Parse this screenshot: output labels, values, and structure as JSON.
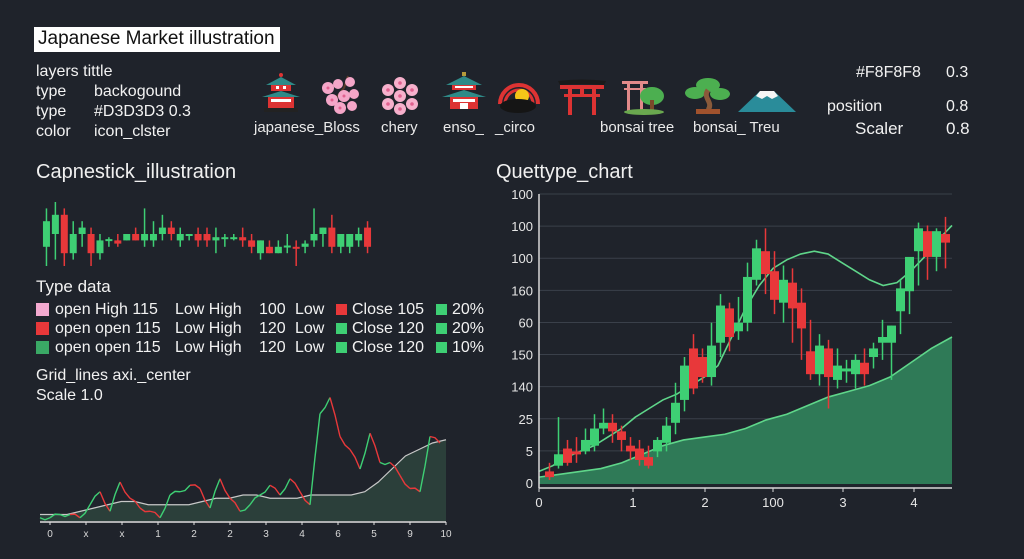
{
  "header": {
    "title": "Japanese Market illustration",
    "layers_title": "layers tittle",
    "meta_rows": [
      {
        "key": "type",
        "value": "backogound"
      },
      {
        "key": "type",
        "value": "#D3D3D3 0.3"
      },
      {
        "key": "color",
        "value": "icon_clster"
      }
    ]
  },
  "icon_cluster": {
    "icons": [
      {
        "name": "pagoda",
        "glyph": "pagoda"
      },
      {
        "name": "cherry-blossom-branch",
        "glyph": "blossom"
      },
      {
        "name": "cherry-blossoms",
        "glyph": "blossom"
      },
      {
        "name": "pagoda-2",
        "glyph": "pagoda"
      },
      {
        "name": "enso-sun",
        "glyph": "enso"
      },
      {
        "name": "torii-gate",
        "glyph": "torii"
      },
      {
        "name": "torii-bonsai",
        "glyph": "torii-tree"
      },
      {
        "name": "bonsai",
        "glyph": "bonsai"
      },
      {
        "name": "mount-fuji",
        "glyph": "fuji"
      }
    ],
    "labels": [
      "japanese_Bloss",
      "chery",
      "enso_",
      "_circo",
      "bonsai tree",
      "bonsai_ Treu"
    ]
  },
  "right_meta": {
    "color_value": "#F8F8F8",
    "color_opacity": "0.3",
    "position_label": "position",
    "position_value": "0.8",
    "scaler_label": "Scaler",
    "scaler_value": "0.8"
  },
  "left_section": {
    "title": "Capnestick_illustration",
    "type_data_title": "Type data",
    "legend_rows": [
      {
        "swatch": "#f3a9cf",
        "open": "open High 115",
        "low_high": "Low High",
        "lh_value": "100",
        "low": "Low",
        "close_swatch": "#e8383a",
        "close": "Close 105",
        "pct_swatch": "#3ecf74",
        "pct": "20%"
      },
      {
        "swatch": "#e8383a",
        "open": "open open 115",
        "low_high": "Low High",
        "lh_value": "120",
        "low": "Low",
        "close_swatch": "#3ecf74",
        "close": "Close 120",
        "pct_swatch": "#3ecf74",
        "pct": "20%"
      },
      {
        "swatch": "#3aa865",
        "open": "open open 115",
        "low_high": "Low High",
        "lh_value": "120",
        "low": "Low",
        "close_swatch": "#3ecf74",
        "close": "Close 120",
        "pct_swatch": "#3ecf74",
        "pct": "10%"
      }
    ],
    "grid_label": "Grid_lines axi._center",
    "scale_label": "Scale 1.0"
  },
  "right_section": {
    "title": "Quettype_chart"
  },
  "colors": {
    "background": "#1f232b",
    "up": "#3ecf74",
    "down": "#e8383a",
    "area": "#2f7a57",
    "ma_line": "#5fd68a",
    "grid": "#3a404a",
    "axis": "#d8d8d8"
  },
  "chart_data": [
    {
      "type": "candlestick",
      "title": "Capnestick_illustration",
      "note": "mini strip of 37 candles, no axes",
      "candles": [
        {
          "o": 3,
          "h": 9,
          "l": 0,
          "c": 7
        },
        {
          "o": 5,
          "h": 10,
          "l": 1,
          "c": 8
        },
        {
          "o": 8,
          "h": 9,
          "l": 0,
          "c": 2
        },
        {
          "o": 2,
          "h": 7,
          "l": 1,
          "c": 5
        },
        {
          "o": 5,
          "h": 7,
          "l": 3,
          "c": 6
        },
        {
          "o": 5,
          "h": 6,
          "l": 0,
          "c": 2
        },
        {
          "o": 2,
          "h": 5,
          "l": 1,
          "c": 4
        },
        {
          "o": 4,
          "h": 4.5,
          "l": 3,
          "c": 4.2
        },
        {
          "o": 4,
          "h": 5,
          "l": 3,
          "c": 3.5
        },
        {
          "o": 4,
          "h": 5,
          "l": 4,
          "c": 5
        },
        {
          "o": 5,
          "h": 6,
          "l": 4,
          "c": 4
        },
        {
          "o": 4,
          "h": 9,
          "l": 3,
          "c": 5
        },
        {
          "o": 4,
          "h": 7,
          "l": 3,
          "c": 5
        },
        {
          "o": 5,
          "h": 8,
          "l": 4,
          "c": 6
        },
        {
          "o": 6,
          "h": 7,
          "l": 4,
          "c": 5
        },
        {
          "o": 4,
          "h": 6,
          "l": 3,
          "c": 5
        },
        {
          "o": 5,
          "h": 5,
          "l": 4,
          "c": 5
        },
        {
          "o": 5,
          "h": 6,
          "l": 3,
          "c": 4
        },
        {
          "o": 5,
          "h": 6,
          "l": 3,
          "c": 4
        },
        {
          "o": 4,
          "h": 6,
          "l": 2,
          "c": 4.5
        },
        {
          "o": 4.5,
          "h": 5,
          "l": 3,
          "c": 4.5
        },
        {
          "o": 4.5,
          "h": 5,
          "l": 4,
          "c": 4.5
        },
        {
          "o": 4.5,
          "h": 6,
          "l": 3,
          "c": 4
        },
        {
          "o": 4,
          "h": 5,
          "l": 2,
          "c": 3
        },
        {
          "o": 2,
          "h": 4,
          "l": 1,
          "c": 4
        },
        {
          "o": 3,
          "h": 4,
          "l": 2,
          "c": 2
        },
        {
          "o": 2,
          "h": 4,
          "l": 2,
          "c": 3
        },
        {
          "o": 3,
          "h": 5,
          "l": 2,
          "c": 3.2
        },
        {
          "o": 3,
          "h": 4,
          "l": 0,
          "c": 2.8
        },
        {
          "o": 3,
          "h": 4,
          "l": 2,
          "c": 3.5
        },
        {
          "o": 4,
          "h": 9,
          "l": 3,
          "c": 5
        },
        {
          "o": 5,
          "h": 6,
          "l": 3,
          "c": 6
        },
        {
          "o": 6,
          "h": 8,
          "l": 2,
          "c": 3
        },
        {
          "o": 3,
          "h": 5,
          "l": 2,
          "c": 5
        },
        {
          "o": 3,
          "h": 5,
          "l": 2,
          "c": 5
        },
        {
          "o": 4,
          "h": 6,
          "l": 3,
          "c": 5
        },
        {
          "o": 6,
          "h": 7,
          "l": 2,
          "c": 3
        }
      ]
    },
    {
      "type": "line",
      "title": "Grid_lines axi._center",
      "x_tick_labels": [
        "0",
        "x",
        "x",
        "1",
        "2",
        "2",
        "3",
        "4",
        "6",
        "5",
        "9",
        "10"
      ],
      "series": [
        {
          "name": "price",
          "values": [
            1,
            1,
            2,
            2,
            1,
            5,
            9,
            3,
            12,
            7,
            4,
            3,
            1,
            8,
            9,
            11,
            10,
            4,
            13,
            7,
            3,
            5,
            8,
            11,
            8,
            13,
            9,
            5,
            33,
            38,
            26,
            22,
            16,
            27,
            18,
            18,
            14,
            10,
            9,
            26,
            24
          ]
        },
        {
          "name": "moving_average",
          "values": [
            2,
            2,
            2,
            3,
            4,
            5,
            6,
            6,
            5,
            5,
            5,
            5,
            6,
            7,
            7,
            8,
            8,
            7,
            7,
            7,
            8,
            8,
            8,
            8,
            9,
            12,
            16,
            20,
            22,
            24,
            25
          ]
        }
      ],
      "fill": "area under moving average"
    },
    {
      "type": "candlestick",
      "title": "Quettype_chart",
      "y_tick_labels": [
        "100",
        "100",
        "100",
        "160",
        "60",
        "150",
        "140",
        "25",
        "5",
        "0"
      ],
      "x_tick_labels": [
        "0",
        "1",
        "2",
        "100",
        "3",
        "4"
      ],
      "grid": true,
      "candles": [
        {
          "o": 0.3,
          "h": 0.6,
          "l": 0,
          "c": 0.1
        },
        {
          "o": 0.5,
          "h": 2.2,
          "l": 0.4,
          "c": 0.9
        },
        {
          "o": 1.1,
          "h": 1.4,
          "l": 0.5,
          "c": 0.6
        },
        {
          "o": 1.0,
          "h": 1.5,
          "l": 0.6,
          "c": 0.9
        },
        {
          "o": 1.0,
          "h": 1.8,
          "l": 0.9,
          "c": 1.4
        },
        {
          "o": 1.2,
          "h": 2.3,
          "l": 1.0,
          "c": 1.8
        },
        {
          "o": 1.8,
          "h": 2.5,
          "l": 1.6,
          "c": 2.0
        },
        {
          "o": 2.0,
          "h": 2.3,
          "l": 1.3,
          "c": 1.7
        },
        {
          "o": 1.7,
          "h": 1.9,
          "l": 1.0,
          "c": 1.4
        },
        {
          "o": 1.2,
          "h": 1.5,
          "l": 0.7,
          "c": 1.0
        },
        {
          "o": 1.1,
          "h": 1.4,
          "l": 0.5,
          "c": 0.7
        },
        {
          "o": 0.8,
          "h": 1.2,
          "l": 0.4,
          "c": 0.5
        },
        {
          "o": 1.0,
          "h": 1.5,
          "l": 0.8,
          "c": 1.4
        },
        {
          "o": 1.3,
          "h": 2.2,
          "l": 1.0,
          "c": 1.9
        },
        {
          "o": 2.0,
          "h": 3.4,
          "l": 1.6,
          "c": 2.7
        },
        {
          "o": 2.8,
          "h": 4.3,
          "l": 2.4,
          "c": 4.0
        },
        {
          "o": 4.6,
          "h": 5.1,
          "l": 3.0,
          "c": 3.2
        },
        {
          "o": 4.3,
          "h": 4.6,
          "l": 3.4,
          "c": 3.6
        },
        {
          "o": 3.6,
          "h": 5.5,
          "l": 3.3,
          "c": 4.7
        },
        {
          "o": 4.8,
          "h": 6.5,
          "l": 4.3,
          "c": 6.1
        },
        {
          "o": 6.0,
          "h": 6.2,
          "l": 4.5,
          "c": 5.0
        },
        {
          "o": 5.2,
          "h": 6.4,
          "l": 4.9,
          "c": 5.5
        },
        {
          "o": 5.5,
          "h": 7.6,
          "l": 5.2,
          "c": 7.1
        },
        {
          "o": 7.0,
          "h": 8.4,
          "l": 6.8,
          "c": 8.1
        },
        {
          "o": 8.0,
          "h": 8.8,
          "l": 6.5,
          "c": 7.2
        },
        {
          "o": 7.3,
          "h": 8.0,
          "l": 5.8,
          "c": 6.3
        },
        {
          "o": 6.2,
          "h": 7.5,
          "l": 5.5,
          "c": 7.0
        },
        {
          "o": 6.9,
          "h": 7.4,
          "l": 4.8,
          "c": 6.0
        },
        {
          "o": 6.2,
          "h": 6.7,
          "l": 4.2,
          "c": 5.3
        },
        {
          "o": 4.5,
          "h": 5.6,
          "l": 3.5,
          "c": 3.7
        },
        {
          "o": 3.7,
          "h": 5.1,
          "l": 3.3,
          "c": 4.7
        },
        {
          "o": 4.6,
          "h": 4.9,
          "l": 2.5,
          "c": 3.6
        },
        {
          "o": 3.5,
          "h": 4.6,
          "l": 3.2,
          "c": 4.0
        },
        {
          "o": 3.8,
          "h": 4.2,
          "l": 3.4,
          "c": 3.9
        },
        {
          "o": 3.7,
          "h": 4.4,
          "l": 3.2,
          "c": 4.2
        },
        {
          "o": 4.1,
          "h": 4.6,
          "l": 3.3,
          "c": 3.7
        },
        {
          "o": 4.3,
          "h": 4.8,
          "l": 3.9,
          "c": 4.6
        },
        {
          "o": 4.8,
          "h": 5.6,
          "l": 4.2,
          "c": 5.0
        },
        {
          "o": 4.8,
          "h": 5.4,
          "l": 3.5,
          "c": 5.4
        },
        {
          "o": 5.9,
          "h": 7.0,
          "l": 5.1,
          "c": 6.7
        },
        {
          "o": 6.6,
          "h": 7.6,
          "l": 5.8,
          "c": 7.8
        },
        {
          "o": 8.0,
          "h": 9.0,
          "l": 6.8,
          "c": 8.8
        },
        {
          "o": 8.7,
          "h": 8.9,
          "l": 7.0,
          "c": 7.8
        },
        {
          "o": 7.8,
          "h": 8.8,
          "l": 7.3,
          "c": 8.7
        },
        {
          "o": 8.6,
          "h": 9.2,
          "l": 7.4,
          "c": 8.3
        }
      ],
      "moving_average": [
        0.3,
        0.5,
        0.8,
        1.0,
        1.2,
        1.5,
        1.8,
        2.2,
        2.5,
        2.8,
        3.0,
        3.3,
        3.6,
        4.0,
        5.0,
        6.0,
        6.8,
        7.4,
        7.7,
        7.9,
        8.0,
        7.9,
        7.6,
        7.3,
        7.0,
        6.8,
        6.9,
        7.3,
        7.8,
        8.4,
        8.9
      ],
      "area_series": [
        0.1,
        0.2,
        0.3,
        0.4,
        0.6,
        0.9,
        1.2,
        1.4,
        1.5,
        1.6,
        1.8,
        2.1,
        2.3,
        2.6,
        2.9,
        3.1,
        3.3,
        3.6,
        4.1,
        4.6,
        5.0
      ],
      "ylim": [
        0,
        10
      ]
    }
  ]
}
